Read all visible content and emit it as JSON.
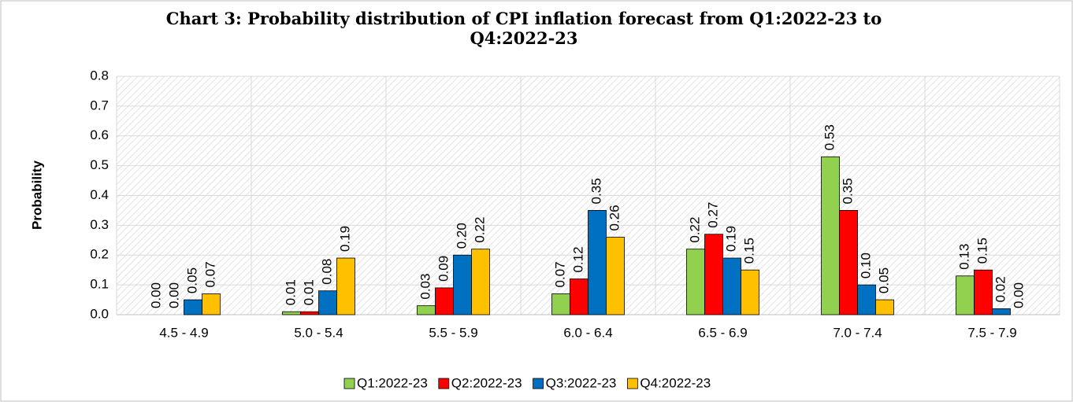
{
  "chart_data": {
    "type": "bar",
    "title": "Chart 3: Probability distribution of  CPI inflation forecast from Q1:2022-23 to Q4:2022-23",
    "ylabel": "Probability",
    "categories": [
      "4.5 - 4.9",
      "5.0 - 5.4",
      "5.5 - 5.9",
      "6.0 - 6.4",
      "6.5 - 6.9",
      "7.0 - 7.4",
      "7.5 - 7.9"
    ],
    "series": [
      {
        "name": "Q1:2022-23",
        "color": "#92d050",
        "values": [
          0.0,
          0.01,
          0.03,
          0.07,
          0.22,
          0.53,
          0.13
        ],
        "value_labels": [
          "0.00",
          "0.01",
          "0.03",
          "0.07",
          "0.22",
          "0.53",
          "0.13"
        ]
      },
      {
        "name": "Q2:2022-23",
        "color": "#ff0000",
        "values": [
          0.0,
          0.01,
          0.09,
          0.12,
          0.27,
          0.35,
          0.15
        ],
        "value_labels": [
          "0.00",
          "0.01",
          "0.09",
          "0.12",
          "0.27",
          "0.35",
          "0.15"
        ]
      },
      {
        "name": "Q3:2022-23",
        "color": "#0070c0",
        "values": [
          0.05,
          0.08,
          0.2,
          0.35,
          0.19,
          0.1,
          0.02
        ],
        "value_labels": [
          "0.05",
          "0.08",
          "0.20",
          "0.35",
          "0.19",
          "0.10",
          "0.02"
        ]
      },
      {
        "name": "Q4:2022-23",
        "color": "#ffc000",
        "values": [
          0.07,
          0.19,
          0.22,
          0.26,
          0.15,
          0.05,
          0.0
        ],
        "value_labels": [
          "0.07",
          "0.19",
          "0.22",
          "0.26",
          "0.15",
          "0.05",
          "0.00"
        ]
      }
    ],
    "ylim": [
      0,
      0.8
    ],
    "yticks": [
      {
        "value": 0,
        "label": "0.0"
      },
      0.1,
      0.2,
      0.3,
      0.4,
      0.5,
      0.6,
      0.7,
      0.8
    ],
    "grid": true,
    "legend": "bottom"
  }
}
